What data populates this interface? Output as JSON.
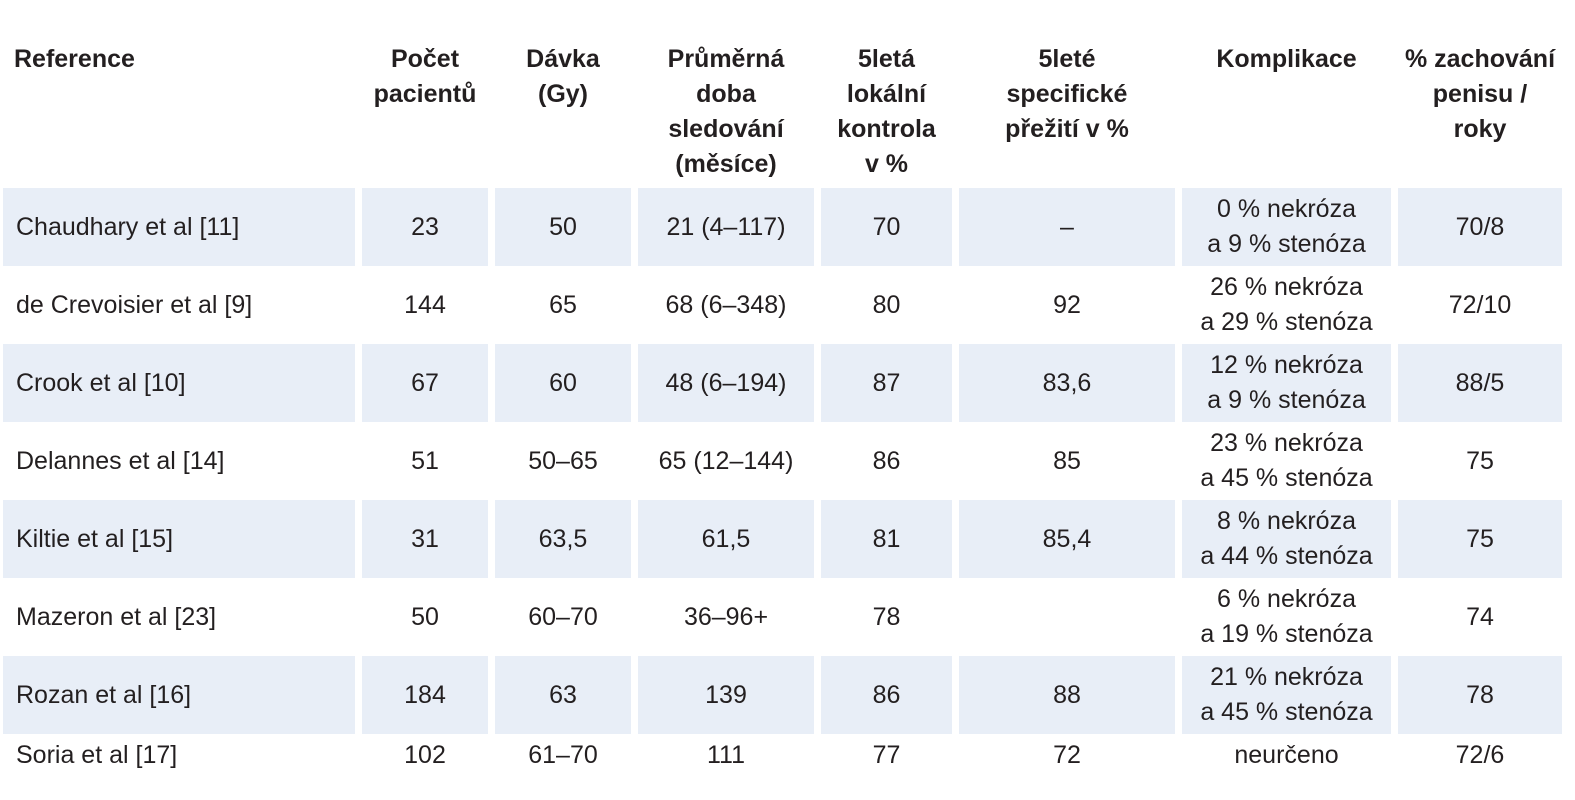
{
  "table": {
    "headers": [
      "Reference",
      "Počet\npacientů",
      "Dávka\n(Gy)",
      "Průměrná\ndoba\nsledování\n(měsíce)",
      "5letá\nlokální\nkontrola\nv %",
      "5leté\nspecifické\npřežití v %",
      "Komplikace",
      "% zachování\npenisu /\nroky"
    ],
    "rows": [
      [
        "Chaudhary et al [11]",
        "23",
        "50",
        "21 (4–117)",
        "70",
        "–",
        "0 % nekróza\na 9 % stenóza",
        "70/8"
      ],
      [
        "de Crevoisier et al [9]",
        "144",
        "65",
        "68 (6–348)",
        "80",
        "92",
        "26 % nekróza\na 29 % stenóza",
        "72/10"
      ],
      [
        "Crook et al [10]",
        "67",
        "60",
        "48 (6–194)",
        "87",
        "83,6",
        "12 % nekróza\na 9 % stenóza",
        "88/5"
      ],
      [
        "Delannes et al [14]",
        "51",
        "50–65",
        "65 (12–144)",
        "86",
        "85",
        "23 % nekróza\na 45 % stenóza",
        "75"
      ],
      [
        "Kiltie et al [15]",
        "31",
        "63,5",
        "61,5",
        "81",
        "85,4",
        "8 % nekróza\na 44 % stenóza",
        "75"
      ],
      [
        "Mazeron et al [23]",
        "50",
        "60–70",
        "36–96+",
        "78",
        "",
        "6 % nekróza\na 19 % stenóza",
        "74"
      ],
      [
        "Rozan et al [16]",
        "184",
        "63",
        "139",
        "86",
        "88",
        "21 % nekróza\na 45 % stenóza",
        "78"
      ],
      [
        "Soria et al [17]",
        "102",
        "61–70",
        "111",
        "77",
        "72",
        "neurčeno",
        "72/6"
      ]
    ],
    "shade_color": "#e8eef7",
    "text_color": "#231f20"
  }
}
